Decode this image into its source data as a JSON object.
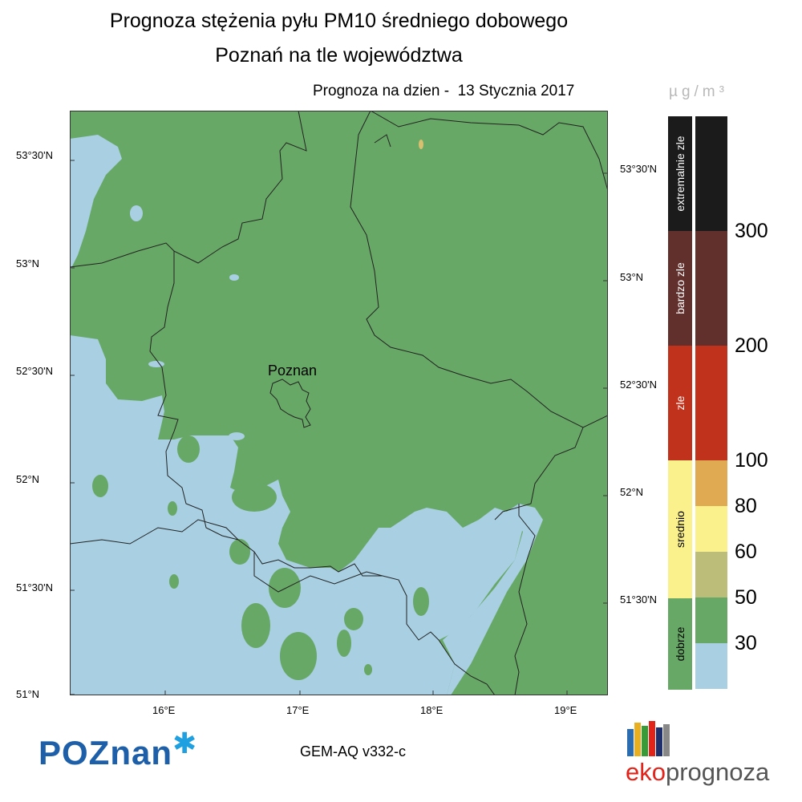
{
  "header": {
    "title": "Prognoza stężenia pyłu PM10 średniego dobowego",
    "subtitle": "Poznań na tle województwa",
    "forecast_date": "Prognoza na dzien -  13 Stycznia 2017",
    "unit": "µg/m³"
  },
  "map": {
    "city_label": "Poznan",
    "lat_labels_left": [
      "53°30'N",
      "53°N",
      "52°30'N",
      "52°N",
      "51°30'N",
      "51°N"
    ],
    "lat_labels_right": [
      "53°30'N",
      "53°N",
      "52°30'N",
      "52°N",
      "51°30'N"
    ],
    "lon_labels": [
      "16°E",
      "17°E",
      "18°E",
      "19°E"
    ],
    "colors": {
      "good": "#68a866",
      "low": "#a8cfe2",
      "border": "#222222"
    }
  },
  "scale": {
    "categories": [
      {
        "label": "extremalnie zle",
        "color": "#1b1b1b"
      },
      {
        "label": "bardzo zle",
        "color": "#62302c"
      },
      {
        "label": "zle",
        "color": "#c0321c"
      },
      {
        "label": "srednio",
        "color": "#fbf18c"
      },
      {
        "label": "dobrze",
        "color": "#68a866"
      }
    ],
    "bins": [
      {
        "color": "#1b1b1b"
      },
      {
        "color": "#62302c"
      },
      {
        "color": "#c0321c"
      },
      {
        "color": "#e0aa52"
      },
      {
        "color": "#fbf18c"
      },
      {
        "color": "#bdbd7a"
      },
      {
        "color": "#68a866"
      },
      {
        "color": "#a8cfe2"
      }
    ],
    "tick_values": [
      "300",
      "200",
      "100",
      "80",
      "60",
      "50",
      "30"
    ]
  },
  "footer": {
    "model": "GEM-AQ v332-c",
    "logo_left": "POZnan",
    "logo_right_a": "eko",
    "logo_right_b": "prognoza"
  }
}
